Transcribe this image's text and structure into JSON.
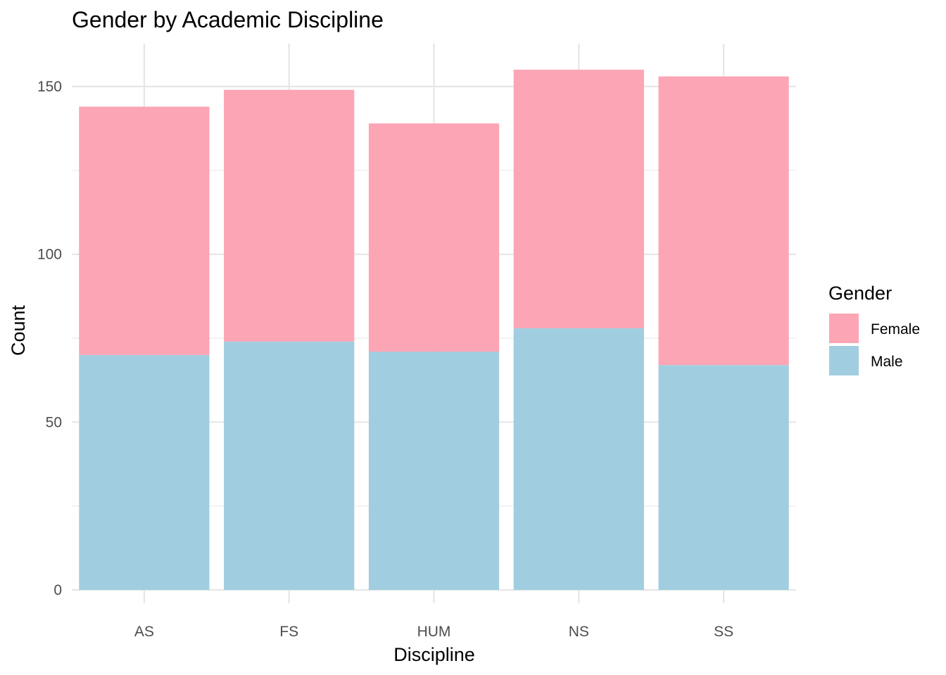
{
  "chart_data": {
    "type": "bar",
    "stacked": true,
    "title": "Gender by Academic Discipline",
    "xlabel": "Discipline",
    "ylabel": "Count",
    "categories": [
      "AS",
      "FS",
      "HUM",
      "NS",
      "SS"
    ],
    "series": [
      {
        "name": "Female",
        "values": [
          74,
          75,
          68,
          77,
          86
        ],
        "color": "#FCA5B5"
      },
      {
        "name": "Male",
        "values": [
          70,
          74,
          71,
          78,
          67
        ],
        "color": "#A0CEE0"
      }
    ],
    "ylim": [
      0,
      160
    ],
    "yticks": [
      0,
      50,
      100,
      150
    ],
    "grid": true,
    "legend": {
      "title": "Gender",
      "position": "right"
    }
  }
}
